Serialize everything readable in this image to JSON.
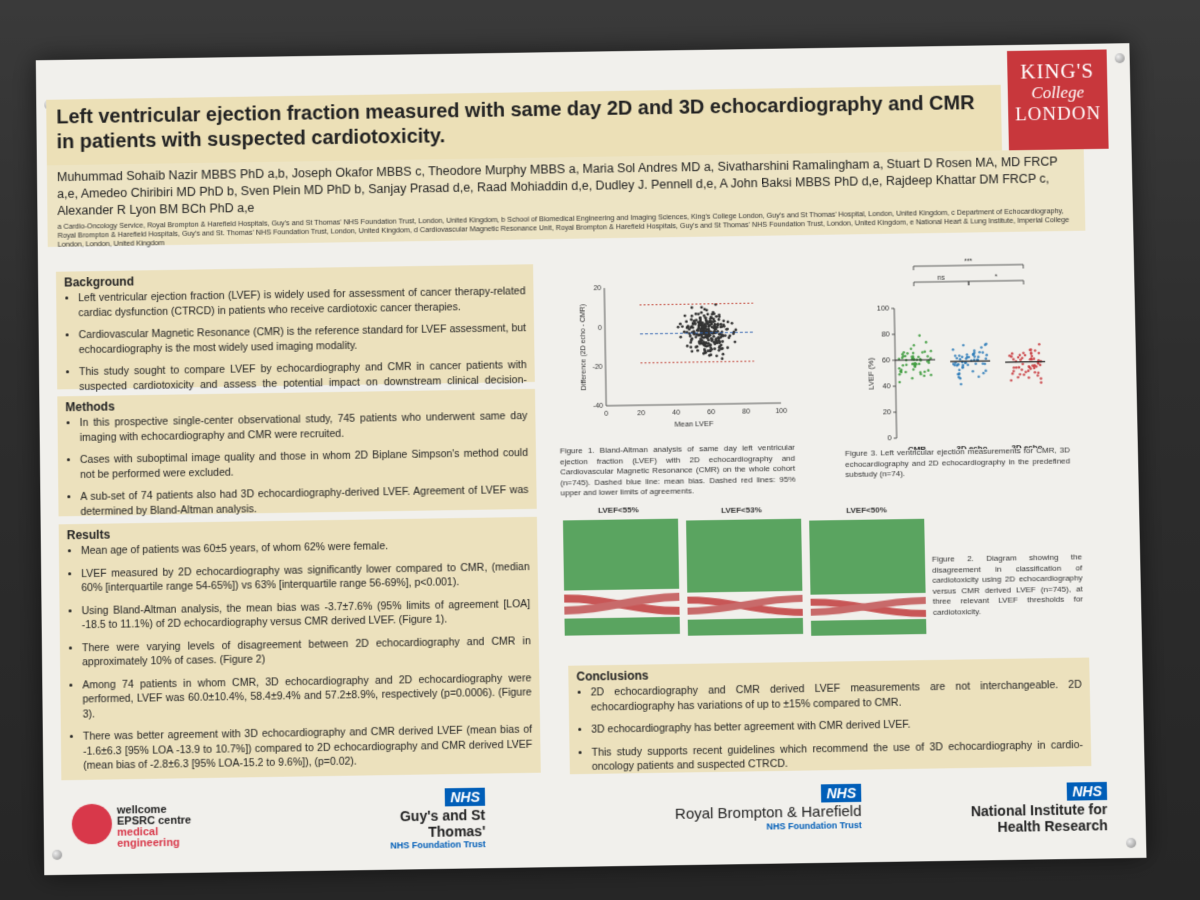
{
  "title": "Left ventricular ejection fraction measured with same day 2D and 3D echocardiography and CMR in patients with suspected cardiotoxicity.",
  "authors": "Muhummad Sohaib Nazir MBBS PhD a,b, Joseph Okafor MBBS c, Theodore Murphy MBBS a, Maria Sol Andres MD a, Sivatharshini Ramalingham a, Stuart D Rosen MA, MD FRCP a,e, Amedeo Chiribiri MD PhD b, Sven Plein MD PhD b, Sanjay Prasad d,e, Raad Mohiaddin d,e, Dudley J. Pennell d,e, A John Baksi MBBS PhD d,e, Rajdeep Khattar DM FRCP c, Alexander R Lyon BM BCh PhD a,e",
  "affiliations": "a Cardio-Oncology Service, Royal Brompton & Harefield Hospitals, Guy's and St Thomas' NHS Foundation Trust, London, United Kingdom, b School of Biomedical Engineering and Imaging Sciences, King's College London, Guy's and St Thomas' Hospital, London, United Kingdom, c Department of Echocardiography, Royal Brompton & Harefield Hospitals, Guy's and St. Thomas' NHS Foundation Trust, London, United Kingdom, d Cardiovascular Magnetic Resonance Unit, Royal Brompton & Harefield Hospitals, Guy's and St Thomas' NHS Foundation Trust, London, United Kingdom, e National Heart & Lung Institute, Imperial College London, London, United Kingdom",
  "logos": {
    "kcl": [
      "KING'S",
      "College",
      "LONDON"
    ],
    "wellcome": [
      "wellcome",
      "EPSRC centre",
      "medical",
      "engineering"
    ],
    "guys": {
      "nhs": "NHS",
      "name": "Guy's and St Thomas'",
      "trust": "NHS Foundation Trust"
    },
    "rbh": {
      "nhs": "NHS",
      "name": "Royal Brompton & Harefield",
      "trust": "NHS Foundation Trust"
    },
    "nihr": {
      "nhs": "NHS",
      "name1": "National Institute for",
      "name2": "Health Research"
    }
  },
  "background": {
    "heading": "Background",
    "items": [
      "Left ventricular ejection fraction (LVEF) is widely used for assessment of cancer therapy-related cardiac dysfunction (CTRCD) in patients who receive cardiotoxic cancer therapies.",
      "Cardiovascular Magnetic Resonance (CMR) is the reference standard for LVEF assessment, but echocardiography is the most widely used imaging modality.",
      "This study sought to compare LVEF by echocardiography and CMR in cancer patients with suspected cardiotoxicity and assess the potential impact on downstream clinical decision-making."
    ]
  },
  "methods": {
    "heading": "Methods",
    "items": [
      "In this prospective single-center observational study, 745 patients who underwent same day imaging with echocardiography and CMR were recruited.",
      "Cases with suboptimal image quality and those in whom 2D Biplane Simpson's method could not be performed were excluded.",
      "A sub-set of 74 patients also had 3D echocardiography-derived LVEF. Agreement of LVEF was determined by Bland-Altman analysis."
    ]
  },
  "results": {
    "heading": "Results",
    "items": [
      "Mean age of patients was 60±5 years, of whom 62% were female.",
      "LVEF measured by 2D echocardiography was significantly lower compared to CMR, (median 60% [interquartile range 54-65%]) vs 63% [interquartile range 56-69%], p<0.001).",
      "Using Bland-Altman analysis, the mean bias was -3.7±7.6% (95% limits of agreement [LOA] -18.5 to 11.1%) of 2D echocardiography versus CMR derived LVEF. (Figure 1).",
      "There were varying levels of disagreement between 2D echocardiography and CMR in approximately 10% of cases. (Figure 2)",
      "Among 74 patients in whom CMR, 3D echocardiography and 2D echocardiography were performed, LVEF was 60.0±10.4%, 58.4±9.4% and 57.2±8.9%, respectively (p=0.0006). (Figure 3).",
      "There was better agreement with 3D echocardiography and CMR derived LVEF (mean bias of -1.6±6.3 [95% LOA -13.9 to 10.7%]) compared to 2D echocardiography and CMR derived LVEF (mean bias of -2.8±6.3 [95% LOA-15.2 to 9.6%]), (p=0.02)."
    ]
  },
  "conclusions": {
    "heading": "Conclusions",
    "items": [
      "2D echocardiography and CMR derived LVEF measurements are not interchangeable. 2D echocardiography has variations of up to ±15% compared to CMR.",
      "3D echocardiography has better agreement with CMR derived LVEF.",
      "This study supports recent guidelines which recommend the use of 3D echocardiography in cardio-oncology patients and suspected CTRCD."
    ]
  },
  "fig1_caption": "Figure 1. Bland-Altman analysis of same day left ventricular ejection fraction (LVEF) with 2D echocardiography and Cardiovascular Magnetic Resonance (CMR) on the whole cohort (n=745). Dashed blue line: mean bias. Dashed red lines: 95% upper and lower limits of agreements.",
  "fig2_caption": "Figure 2. Diagram showing the disagreement in classification of cardiotoxicity using 2D echocardiography versus CMR derived LVEF (n=745), at three relevant LVEF thresholds for cardiotoxicity.",
  "fig3_caption": "Figure 3. Left ventricular ejection measurements for CMR, 3D echocardiography and 2D echocardiography in the predefined substudy (n=74).",
  "fig2_panels": [
    "LVEF<55%",
    "LVEF<53%",
    "LVEF<50%"
  ],
  "chart_data": [
    {
      "type": "scatter",
      "title": "",
      "xlabel": "Mean LVEF",
      "ylabel": "Difference (2D echo - CMR)",
      "xlim": [
        0,
        100
      ],
      "ylim": [
        -40,
        20
      ],
      "xticks": [
        0,
        20,
        40,
        60,
        80,
        100
      ],
      "yticks": [
        -40,
        -20,
        0,
        20
      ],
      "mean_bias": -3.7,
      "loa": [
        -18.5,
        11.1
      ],
      "n": 745,
      "points_summary": {
        "x_mean": 58,
        "x_sd": 9,
        "y_mean": -3.7,
        "y_sd": 7.6
      }
    },
    {
      "type": "scatter",
      "title": "",
      "xlabel": "",
      "ylabel": "LVEF (%)",
      "ylim": [
        0,
        100
      ],
      "yticks": [
        0,
        20,
        40,
        60,
        80,
        100
      ],
      "categories": [
        "CMR",
        "3D echo",
        "2D echo"
      ],
      "means": [
        60.0,
        58.4,
        57.2
      ],
      "sds": [
        10.4,
        9.4,
        8.9
      ],
      "colors": [
        "#3a9a3a",
        "#2a7ab8",
        "#c8373c"
      ],
      "significance": [
        {
          "from": 0,
          "to": 1,
          "label": "ns"
        },
        {
          "from": 1,
          "to": 2,
          "label": "*"
        },
        {
          "from": 0,
          "to": 2,
          "label": "***"
        }
      ]
    }
  ]
}
